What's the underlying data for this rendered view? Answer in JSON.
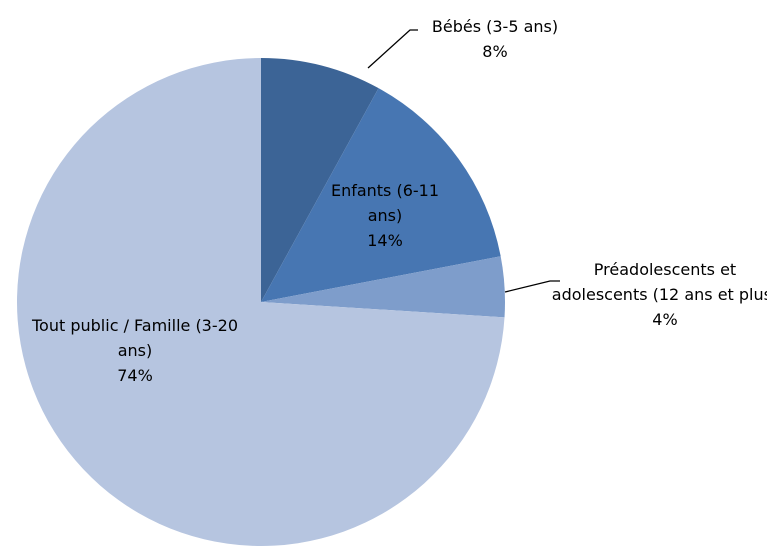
{
  "chart_data": {
    "type": "pie",
    "categories": [
      "Bébés (3-5 ans)",
      "Enfants (6-11 ans)",
      "Préadolescents et adolescents (12 ans et plus)",
      "Tout public / Famille (3-20 ans)"
    ],
    "values": [
      8,
      14,
      4,
      74
    ],
    "value_labels": [
      "8%",
      "14%",
      "4%",
      "74%"
    ],
    "colors": [
      "#3c6496",
      "#4776b2",
      "#7e9dcb",
      "#b6c5e0"
    ]
  }
}
